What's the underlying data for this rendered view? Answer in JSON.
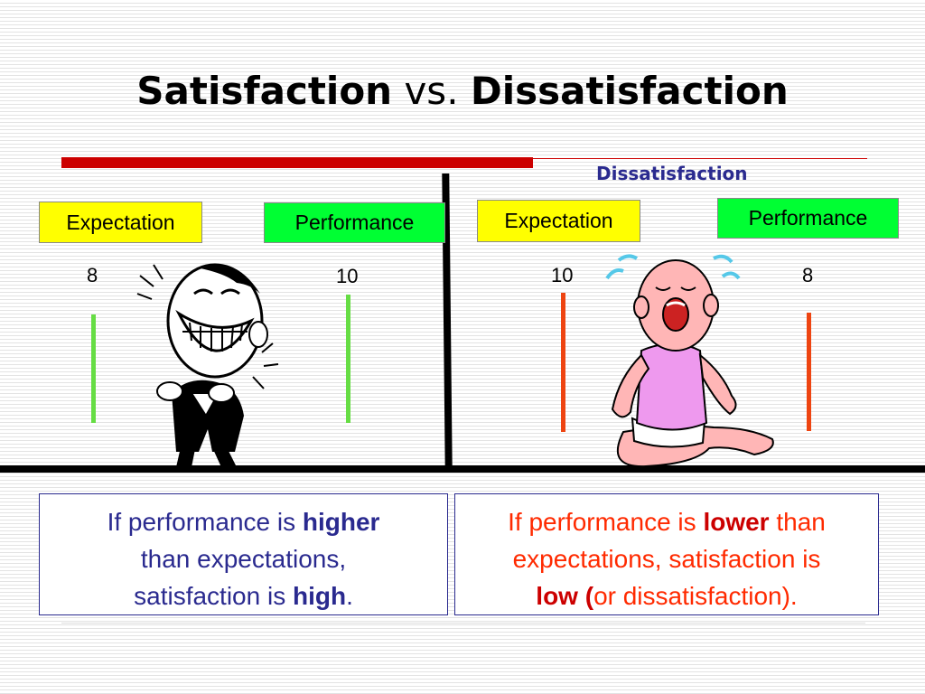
{
  "title": {
    "part1": "Satisfaction",
    "part2": "vs.",
    "part3": "Dissatisfaction"
  },
  "right_heading": "Dissatisfaction",
  "left": {
    "expectation_label": "Expectation",
    "performance_label": "Performance",
    "expectation_value": "8",
    "performance_value": "10",
    "text": {
      "a": "If performance is ",
      "b": "higher",
      "c": "than expectations,",
      "d": "satisfaction is ",
      "e": "high",
      "f": "."
    }
  },
  "right": {
    "expectation_label": "Expectation",
    "performance_label": "Performance",
    "expectation_value": "10",
    "performance_value": "8",
    "text": {
      "a": "If performance is ",
      "b": "lower",
      "c": " than",
      "d": "expectations, satisfaction is",
      "e": "low (",
      "f": "or dissatisfaction)."
    }
  },
  "colors": {
    "red_bar": "#cc0000",
    "yellow_box": "#ffff00",
    "green_box": "#00ff33",
    "satisfied_bar": "#66dd44",
    "dissatisfied_bar": "#ee4411",
    "blue_text": "#2a2a8f",
    "red_text": "#ff2a00"
  },
  "illustrations": [
    "laughing-man-clipart",
    "crying-baby-clipart"
  ]
}
